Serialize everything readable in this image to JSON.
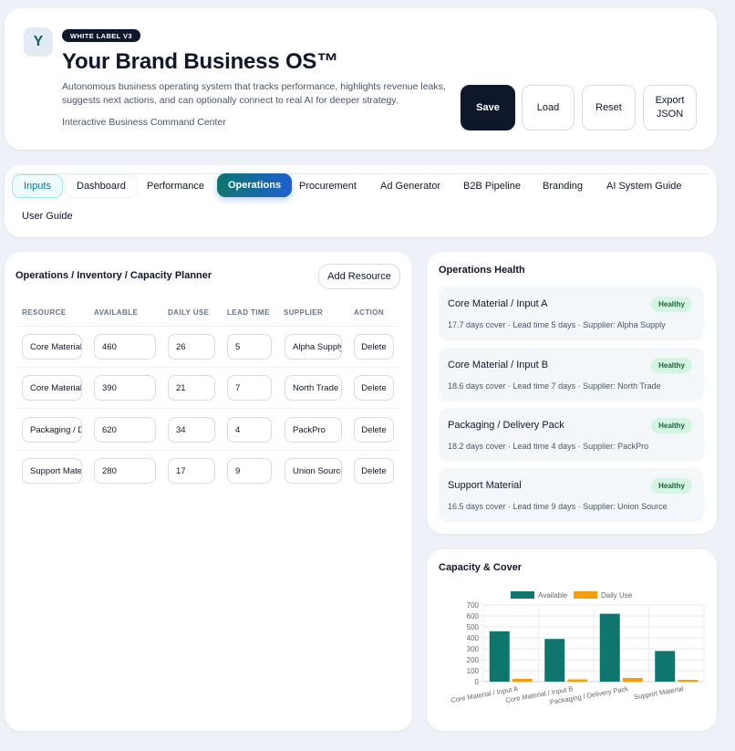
{
  "header": {
    "logo_letter": "Y",
    "badge": "WHITE LABEL V3",
    "title": "Your Brand Business OS™",
    "description": "Autonomous business operating system that tracks performance, highlights revenue leaks, suggests next actions, and can optionally connect to real AI for deeper strategy.",
    "subtitle": "Interactive Business Command Center",
    "buttons": {
      "save": "Save",
      "load": "Load",
      "reset": "Reset",
      "export": "Export JSON"
    }
  },
  "tabs": [
    "Inputs",
    "Dashboard",
    "Performance",
    "Operations",
    "Procurement",
    "Ad Generator",
    "B2B Pipeline",
    "Branding",
    "AI System Guide",
    "User Guide"
  ],
  "active_tab": "Operations",
  "planner": {
    "title": "Operations / Inventory / Capacity Planner",
    "add_button": "Add Resource",
    "columns": [
      "RESOURCE",
      "AVAILABLE",
      "DAILY USE",
      "LEAD TIME",
      "SUPPLIER",
      "ACTION"
    ],
    "rows": [
      {
        "resource": "Core Material / Input A",
        "available": "460",
        "daily_use": "26",
        "lead_time": "5",
        "supplier": "Alpha Supply",
        "action": "Delete"
      },
      {
        "resource": "Core Material / Input B",
        "available": "390",
        "daily_use": "21",
        "lead_time": "7",
        "supplier": "North Trade",
        "action": "Delete"
      },
      {
        "resource": "Packaging / Delivery Pack",
        "available": "620",
        "daily_use": "34",
        "lead_time": "4",
        "supplier": "PackPro",
        "action": "Delete"
      },
      {
        "resource": "Support Material",
        "available": "280",
        "daily_use": "17",
        "lead_time": "9",
        "supplier": "Union Source",
        "action": "Delete"
      }
    ]
  },
  "health": {
    "title": "Operations Health",
    "items": [
      {
        "name": "Core Material / Input A",
        "meta": "17.7 days cover · Lead time 5 days · Supplier: Alpha Supply",
        "status": "Healthy"
      },
      {
        "name": "Core Material / Input B",
        "meta": "18.6 days cover · Lead time 7 days · Supplier: North Trade",
        "status": "Healthy"
      },
      {
        "name": "Packaging / Delivery Pack",
        "meta": "18.2 days cover · Lead time 4 days · Supplier: PackPro",
        "status": "Healthy"
      },
      {
        "name": "Support Material",
        "meta": "16.5 days cover · Lead time 9 days · Supplier: Union Source",
        "status": "Healthy"
      }
    ]
  },
  "capacity": {
    "title": "Capacity & Cover"
  },
  "colors": {
    "available": "#0f766e",
    "daily_use": "#f59e0b",
    "healthy_bg": "#d5f5e3"
  },
  "chart_data": {
    "type": "bar",
    "categories": [
      "Core Material / Input A",
      "Core Material / Input B",
      "Packaging / Delivery Pack",
      "Support Material"
    ],
    "series": [
      {
        "name": "Available",
        "values": [
          460,
          390,
          620,
          280
        ]
      },
      {
        "name": "Daily Use",
        "values": [
          26,
          21,
          34,
          17
        ]
      }
    ],
    "ylim": [
      0,
      700
    ],
    "yticks": [
      0,
      100,
      200,
      300,
      400,
      500,
      600,
      700
    ],
    "legend": "top",
    "grid": true
  }
}
